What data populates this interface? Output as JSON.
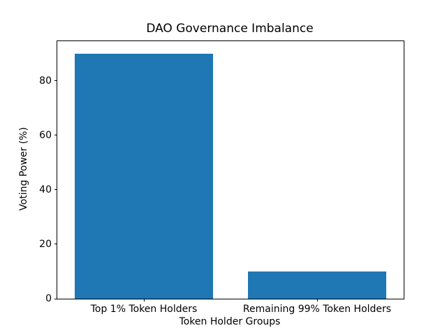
{
  "chart_data": {
    "type": "bar",
    "title": "DAO Governance Imbalance",
    "xlabel": "Token Holder Groups",
    "ylabel": "Voting Power (%)",
    "categories": [
      "Top 1% Token Holders",
      "Remaining 99% Token Holders"
    ],
    "values": [
      90,
      10
    ],
    "ylim": [
      0,
      94.5
    ],
    "yticks": [
      0,
      20,
      40,
      60,
      80
    ],
    "bar_color": "#1f77b4",
    "bar_width_fraction": 0.8,
    "grid": false,
    "legend": "none"
  }
}
